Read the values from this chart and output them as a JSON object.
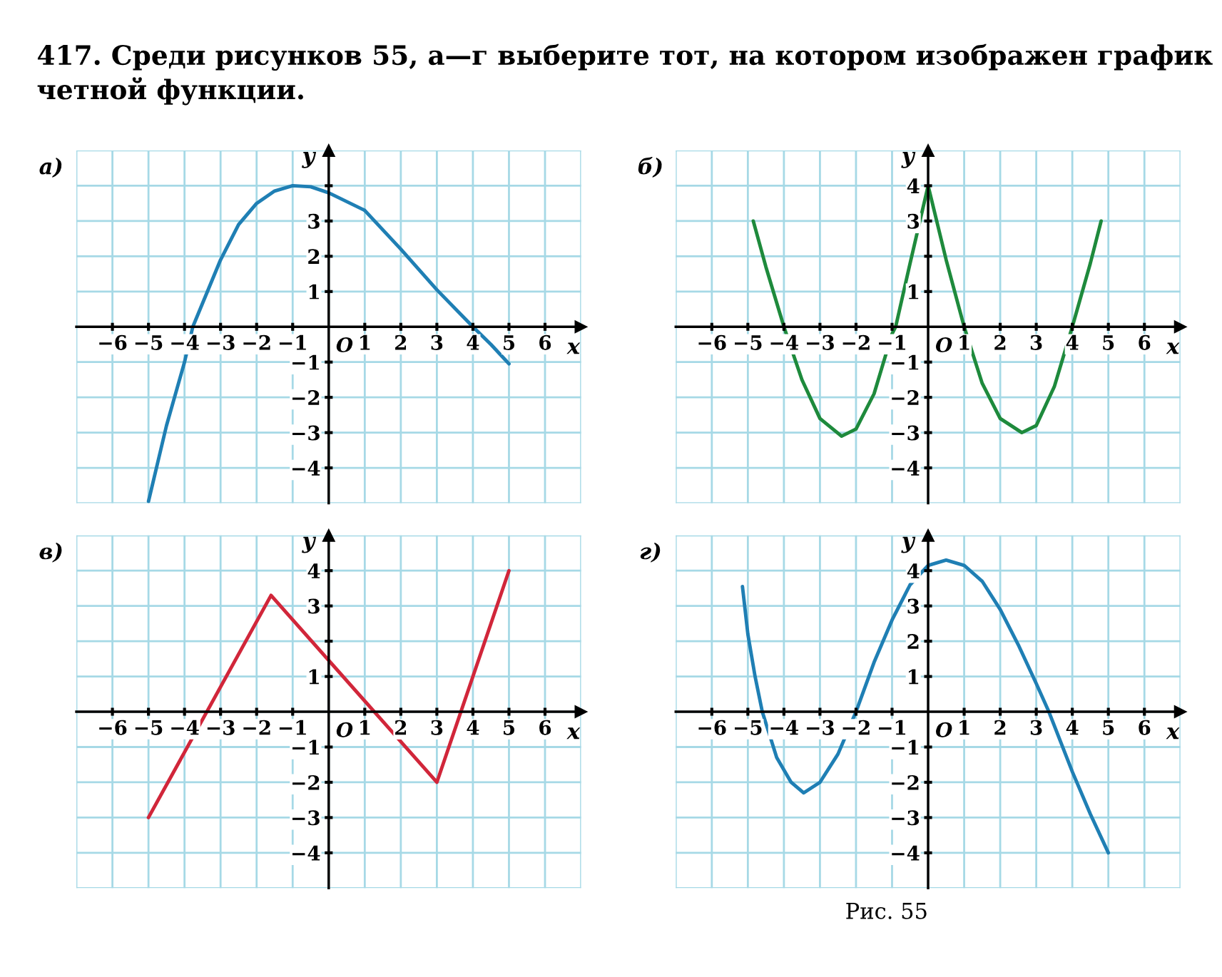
{
  "chart_data": [
    {
      "type": "line",
      "title": "а)",
      "xlabel": "x",
      "ylabel": "y",
      "xlim": [
        -7,
        7
      ],
      "ylim": [
        -5,
        5
      ],
      "grid": true,
      "xticks": [
        -6,
        -5,
        -4,
        -3,
        -2,
        -1,
        1,
        2,
        3,
        4,
        5,
        6
      ],
      "yticks": [
        {
          "value": -4,
          "label": "−4"
        },
        {
          "value": -3,
          "label": "−3"
        },
        {
          "value": -2,
          "label": "−2"
        },
        {
          "value": -1,
          "label": "−1"
        },
        1,
        2,
        3,
        {
          "value": 4,
          "label": null
        }
      ],
      "annotations": [
        "O",
        "417. Среди рисунков 55, а—г выберите тот, на котором изображен график четной функции."
      ],
      "series": [
        {
          "color": "#1f7fb4",
          "x": [
            -5,
            -4.5,
            -4,
            -3.77,
            -3,
            -2.5,
            -2,
            -1.5,
            -1,
            -0.5,
            0,
            1,
            2,
            3,
            4,
            4.5,
            5
          ],
          "values": [
            -4.95,
            -2.8,
            -1.0,
            0,
            1.9,
            2.9,
            3.5,
            3.85,
            4.0,
            3.97,
            3.8,
            3.3,
            2.2,
            1.05,
            0,
            -0.5,
            -1.05
          ]
        }
      ]
    },
    {
      "type": "line",
      "title": "б)",
      "xlabel": "x",
      "ylabel": "y",
      "xlim": [
        -7,
        7
      ],
      "ylim": [
        -5,
        5
      ],
      "grid": true,
      "xticks": [
        -6,
        -5,
        -4,
        -3,
        -2,
        -1,
        1,
        2,
        3,
        4,
        5,
        6
      ],
      "yticks": [
        {
          "value": -4,
          "label": "−4"
        },
        {
          "value": -3,
          "label": "−3"
        },
        {
          "value": -2,
          "label": "−2"
        },
        {
          "value": -1,
          "label": "−1"
        },
        1,
        {
          "value": 2,
          "label": null
        },
        3,
        4
      ],
      "annotations": [
        "O"
      ],
      "series": [
        {
          "color": "#1e8a3c",
          "x": [
            -4.85,
            -4.5,
            -4,
            -3.5,
            -3,
            -2.4,
            -2,
            -1.5,
            -1,
            -0.9,
            -0.5,
            0,
            0.5,
            1,
            1.5,
            2,
            2.6,
            3,
            3.5,
            4,
            4.5,
            4.8
          ],
          "values": [
            3.0,
            1.7,
            0,
            -1.5,
            -2.6,
            -3.1,
            -2.9,
            -1.9,
            -0.2,
            0,
            1.8,
            4,
            1.9,
            0,
            -1.6,
            -2.6,
            -3.0,
            -2.8,
            -1.7,
            0,
            1.8,
            3.0
          ]
        }
      ]
    },
    {
      "type": "line",
      "title": "в)",
      "xlabel": "x",
      "ylabel": "y",
      "xlim": [
        -7,
        7
      ],
      "ylim": [
        -5,
        5
      ],
      "grid": true,
      "xticks": [
        -6,
        -5,
        -4,
        -3,
        -2,
        -1,
        1,
        2,
        3,
        4,
        5,
        6
      ],
      "yticks": [
        {
          "value": -4,
          "label": "−4"
        },
        {
          "value": -3,
          "label": "−3"
        },
        {
          "value": -2,
          "label": "−2"
        },
        {
          "value": -1,
          "label": "−1"
        },
        1,
        {
          "value": 2,
          "label": null
        },
        3,
        4
      ],
      "annotations": [
        "O"
      ],
      "series": [
        {
          "color": "#d1263a",
          "x": [
            -5,
            -1.6,
            3,
            5
          ],
          "values": [
            -3,
            3.3,
            -2,
            4
          ]
        }
      ]
    },
    {
      "type": "line",
      "title": "г)",
      "xlabel": "x",
      "ylabel": "y",
      "xlim": [
        -7,
        7
      ],
      "ylim": [
        -5,
        5
      ],
      "grid": true,
      "xticks": [
        -6,
        -5,
        -4,
        -3,
        -2,
        -1,
        1,
        2,
        3,
        4,
        5,
        6
      ],
      "yticks": [
        {
          "value": -4,
          "label": "−4"
        },
        {
          "value": -3,
          "label": "−3"
        },
        {
          "value": -2,
          "label": "−2"
        },
        {
          "value": -1,
          "label": "−1"
        },
        1,
        2,
        3,
        4
      ],
      "annotations": [
        "O",
        "Рис. 55"
      ],
      "series": [
        {
          "color": "#1f7fb4",
          "x": [
            -5.15,
            -5,
            -4.8,
            -4.6,
            -4.2,
            -3.8,
            -3.45,
            -3,
            -2.5,
            -2,
            -1.5,
            -1,
            -0.5,
            0,
            0.5,
            1,
            1.5,
            2,
            2.5,
            3,
            3.35,
            4,
            4.5,
            5
          ],
          "values": [
            3.55,
            2.2,
            1.0,
            0,
            -1.3,
            -2.0,
            -2.3,
            -2.0,
            -1.2,
            0,
            1.4,
            2.6,
            3.6,
            4.15,
            4.3,
            4.15,
            3.7,
            2.9,
            1.9,
            0.8,
            0,
            -1.7,
            -2.9,
            -4.0
          ]
        }
      ]
    }
  ]
}
